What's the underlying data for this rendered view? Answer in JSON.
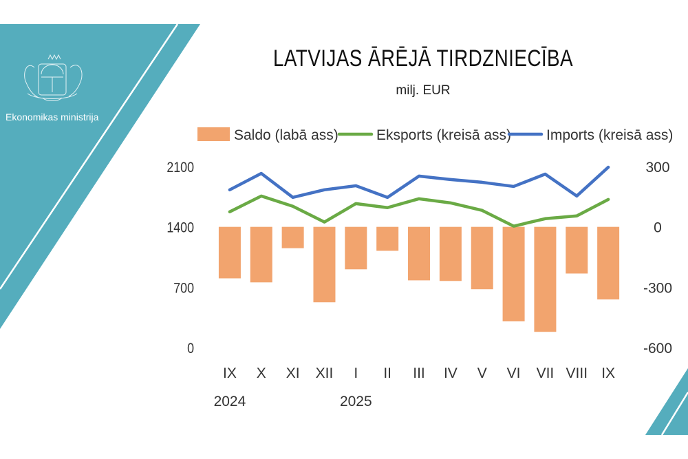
{
  "header": {
    "organization": "Ekonomikas ministrija",
    "title": "LATVIJAS ĀRĒJĀ TIRDZNIECĪBA",
    "subtitle": "milj. EUR"
  },
  "colors": {
    "teal": "#55adbd",
    "saldo": "#f2a46e",
    "eksports": "#6aaa45",
    "imports": "#4472c4"
  },
  "chart_data": {
    "type": "bar+line",
    "title": "LATVIJAS ĀRĒJĀ TIRDZNIECĪBA",
    "subtitle": "milj. EUR",
    "categories": [
      "IX",
      "X",
      "XI",
      "XII",
      "I",
      "II",
      "III",
      "IV",
      "V",
      "VI",
      "VII",
      "VIII",
      "IX"
    ],
    "year_labels": [
      {
        "index": 0,
        "label": "2024"
      },
      {
        "index": 4,
        "label": "2025"
      }
    ],
    "left_axis": {
      "ylim": [
        0,
        2100
      ],
      "ticks": [
        0,
        700,
        1400,
        2100
      ]
    },
    "right_axis": {
      "ylim": [
        -600,
        300
      ],
      "ticks": [
        -600,
        -300,
        0,
        300
      ]
    },
    "legend_position": "top",
    "series": [
      {
        "name": "Saldo (labā ass)",
        "type": "bar",
        "axis": "right",
        "values": [
          -256,
          -276,
          -106,
          -375,
          -211,
          -119,
          -266,
          -269,
          -310,
          -470,
          -522,
          -232,
          -361
        ]
      },
      {
        "name": "Eksports (kreisā ass)",
        "type": "line",
        "axis": "left",
        "values": [
          1575,
          1758,
          1639,
          1456,
          1670,
          1623,
          1726,
          1678,
          1591,
          1408,
          1495,
          1527,
          1718
        ]
      },
      {
        "name": "Imports (kreisā ass)",
        "type": "line",
        "axis": "left",
        "values": [
          1830,
          2020,
          1742,
          1830,
          1877,
          1742,
          1989,
          1949,
          1917,
          1869,
          2012,
          1758,
          2092
        ]
      }
    ],
    "grid": false
  }
}
